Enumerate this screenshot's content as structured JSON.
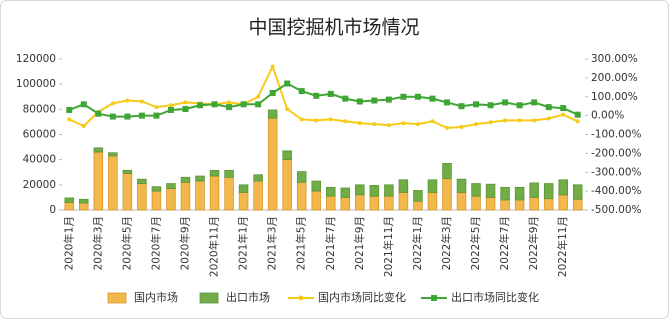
{
  "chart_data": {
    "type": "bar",
    "stacked": true,
    "title": "中国挖掘机市场情况",
    "categories": [
      "2020年1月",
      null,
      "2020年3月",
      null,
      "2020年5月",
      null,
      "2020年7月",
      null,
      "2020年9月",
      null,
      "2020年11月",
      null,
      "2021年1月",
      null,
      "2021年3月",
      null,
      "2021年5月",
      null,
      "2021年7月",
      null,
      "2021年9月",
      null,
      "2021年11月",
      null,
      "2022年1月",
      null,
      "2022年3月",
      null,
      "2022年5月",
      null,
      "2022年7月",
      null,
      "2022年9月",
      null,
      "2022年11月",
      null
    ],
    "series": [
      {
        "name": "国内市场",
        "type": "bar",
        "color": "#f2b84b",
        "values": [
          6000,
          5500,
          46000,
          43000,
          29000,
          21000,
          15000,
          17000,
          22000,
          23000,
          27000,
          26000,
          14000,
          23000,
          73000,
          40000,
          22000,
          15000,
          11000,
          10000,
          12000,
          11000,
          11000,
          14000,
          7000,
          14000,
          25000,
          14000,
          11000,
          10000,
          8000,
          8000,
          10000,
          9000,
          12000,
          8500
        ]
      },
      {
        "name": "出口市场",
        "type": "bar",
        "color": "#70ad47",
        "values": [
          3600,
          3000,
          3400,
          2500,
          2500,
          3500,
          3500,
          4000,
          4000,
          4000,
          4500,
          5500,
          6000,
          5000,
          6500,
          7000,
          8500,
          8000,
          7000,
          7500,
          8000,
          8500,
          9000,
          10000,
          8500,
          10000,
          12000,
          10500,
          10000,
          10500,
          10000,
          10000,
          11500,
          12000,
          12000,
          11500
        ]
      },
      {
        "name": "国内市场同比变化",
        "type": "line",
        "axis": "y2",
        "color": "#f7ca18",
        "values": [
          -20,
          -55,
          20,
          65,
          80,
          75,
          45,
          55,
          70,
          65,
          60,
          70,
          60,
          100,
          260,
          35,
          -20,
          -25,
          -20,
          -30,
          -40,
          -45,
          -50,
          -40,
          -45,
          -30,
          -65,
          -60,
          -45,
          -35,
          -25,
          -25,
          -25,
          -15,
          5,
          -30
        ]
      },
      {
        "name": "出口市场同比变化",
        "type": "line",
        "axis": "y2",
        "color": "#3fa535",
        "values": [
          30,
          60,
          10,
          -5,
          -5,
          0,
          0,
          30,
          35,
          55,
          60,
          45,
          60,
          60,
          120,
          170,
          130,
          105,
          115,
          90,
          75,
          80,
          85,
          100,
          100,
          90,
          70,
          50,
          60,
          55,
          70,
          55,
          70,
          45,
          40,
          5
        ]
      }
    ],
    "ylim": [
      0,
      120000
    ],
    "yticks": [
      0,
      20000,
      40000,
      60000,
      80000,
      100000,
      120000
    ],
    "y2lim": [
      -500,
      300
    ],
    "y2ticks": [
      {
        "value": -500,
        "label": "-500.00%"
      },
      {
        "value": -400,
        "label": "-400.00%"
      },
      {
        "value": -300,
        "label": "-300.00%"
      },
      {
        "value": -200,
        "label": "-200.00%"
      },
      {
        "value": -100,
        "label": "-100.00%"
      },
      {
        "value": 0,
        "label": "0.00%"
      },
      {
        "value": 100,
        "label": "100.00%"
      },
      {
        "value": 200,
        "label": "200.00%"
      },
      {
        "value": 300,
        "label": "300.00%"
      }
    ],
    "legend": "bottom"
  }
}
